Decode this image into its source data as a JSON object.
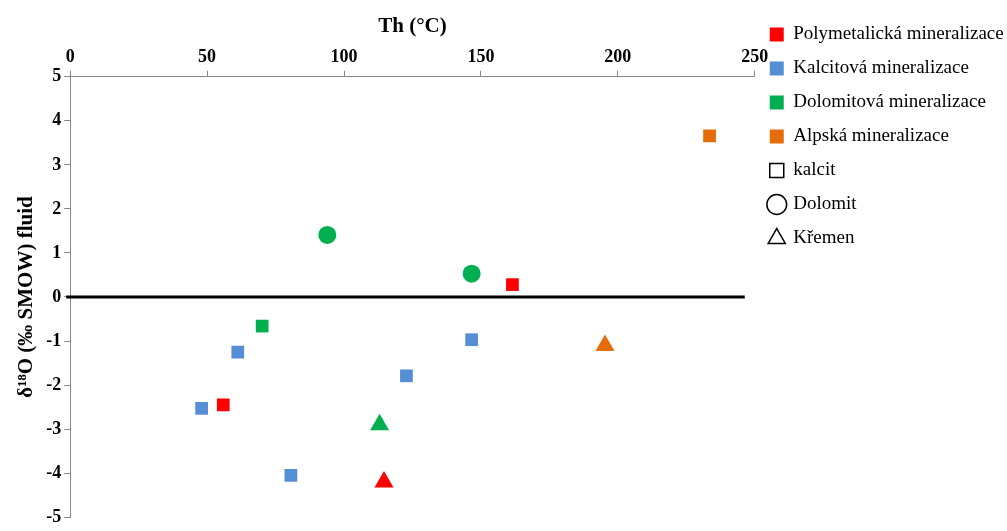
{
  "chart_data": {
    "type": "scatter",
    "xlabel": "Th (°C)",
    "ylabel": "δ¹⁸O (‰ SMOW) fluid",
    "xlim": [
      0,
      250
    ],
    "xticks": [
      0,
      50,
      100,
      150,
      200,
      250
    ],
    "ylim": [
      -5,
      5
    ],
    "yticks": [
      -5,
      -4,
      -3,
      -2,
      -1,
      0,
      1,
      2,
      3,
      4,
      5
    ],
    "grid": false,
    "legend": "right",
    "ref_lines": [
      {
        "axis": "y",
        "value": 0,
        "color": "#000000"
      }
    ],
    "series": [
      {
        "name": "Polymetalická mineralizace",
        "color": "#ff0000",
        "marker": "square",
        "x": [
          55.9,
          161.5
        ],
        "values": [
          -2.45,
          0.28
        ]
      },
      {
        "name": "Kalcitová mineralizace",
        "color": "#558ed5",
        "marker": "square",
        "x": [
          48,
          61.2,
          80.6,
          122.8,
          146.6
        ],
        "values": [
          -2.53,
          -1.25,
          -4.05,
          -1.79,
          -0.97
        ]
      },
      {
        "name": "Dolomitová mineralizace",
        "color": "#00b050",
        "marker": "square",
        "x": [
          70.1
        ],
        "values": [
          -0.66
        ]
      },
      {
        "name": "Alpská mineralizace",
        "color": "#e46c0a",
        "marker": "square",
        "x": [
          233.5
        ],
        "values": [
          3.66
        ]
      },
      {
        "name": "kalcit",
        "color": "#000000",
        "marker": "square"
      },
      {
        "name": "Dolomit",
        "color": "#000000",
        "marker": "circle"
      },
      {
        "name": "Křemen",
        "color": "#000000",
        "marker": "triangle"
      },
      {
        "color": "#00b050",
        "marker": "circle",
        "x": [
          93.9,
          146.6
        ],
        "values": [
          1.41,
          0.53
        ]
      },
      {
        "color": "#00b050",
        "marker": "triangle",
        "x": [
          113
        ],
        "values": [
          -2.9
        ]
      },
      {
        "color": "#ff0000",
        "marker": "triangle",
        "x": [
          114.6
        ],
        "values": [
          -4.2
        ]
      },
      {
        "color": "#e46c0a",
        "marker": "triangle",
        "x": [
          195.3
        ],
        "values": [
          -1.1
        ]
      }
    ]
  }
}
